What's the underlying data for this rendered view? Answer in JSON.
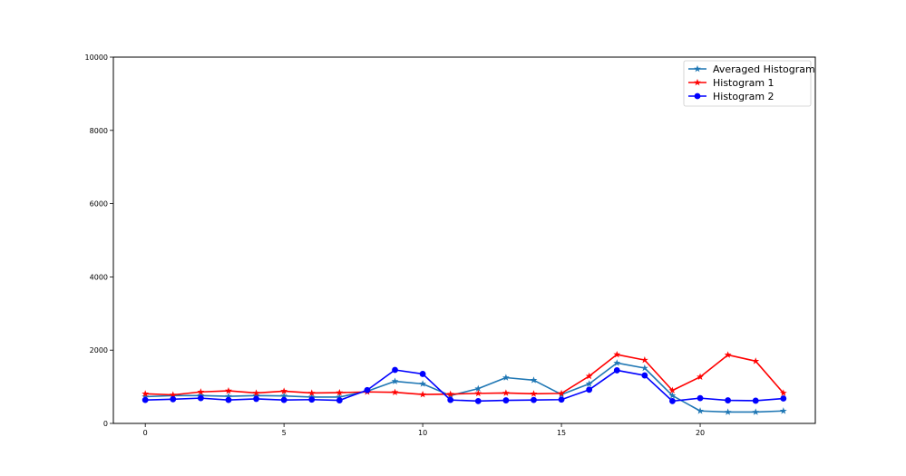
{
  "chart_data": {
    "type": "line",
    "x": [
      0,
      1,
      2,
      3,
      4,
      5,
      6,
      7,
      8,
      9,
      10,
      11,
      12,
      13,
      14,
      15,
      16,
      17,
      18,
      19,
      20,
      21,
      22,
      23
    ],
    "series": [
      {
        "name": "Averaged Histogram",
        "color": "#1f77b4",
        "marker": "star",
        "values": [
          730,
          760,
          760,
          740,
          760,
          750,
          720,
          720,
          880,
          1150,
          1080,
          760,
          950,
          1250,
          1180,
          790,
          1080,
          1650,
          1510,
          760,
          340,
          310,
          310,
          340
        ]
      },
      {
        "name": "Histogram 1",
        "color": "#ff0000",
        "marker": "star",
        "values": [
          810,
          780,
          860,
          890,
          830,
          880,
          830,
          840,
          860,
          850,
          790,
          800,
          820,
          830,
          810,
          820,
          1290,
          1880,
          1730,
          900,
          1270,
          1870,
          1700,
          830
        ]
      },
      {
        "name": "Histogram 2",
        "color": "#0000ff",
        "marker": "circle",
        "values": [
          640,
          660,
          690,
          640,
          670,
          640,
          650,
          630,
          910,
          1460,
          1350,
          640,
          610,
          630,
          640,
          650,
          920,
          1450,
          1310,
          610,
          690,
          630,
          620,
          680
        ]
      }
    ],
    "xlim": [
      -1.15,
      24.15
    ],
    "ylim": [
      0,
      10000
    ],
    "xticks": [
      0,
      5,
      10,
      15,
      20
    ],
    "yticks": [
      0,
      2000,
      4000,
      6000,
      8000,
      10000
    ],
    "xtick_labels": [
      "0",
      "5",
      "10",
      "15",
      "20"
    ],
    "ytick_labels": [
      "0",
      "2000",
      "4000",
      "6000",
      "8000",
      "10000"
    ],
    "title": "",
    "xlabel": "",
    "ylabel": "",
    "legend_position": "top-right",
    "grid": false
  }
}
